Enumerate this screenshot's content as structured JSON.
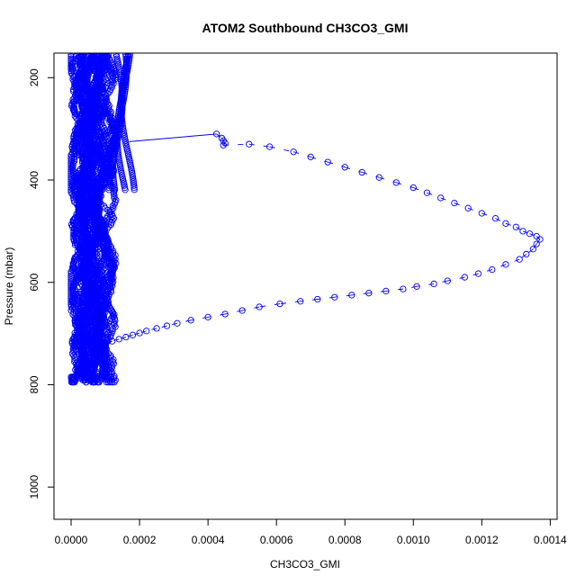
{
  "chart_data": {
    "type": "scatter",
    "title": "ATOM2 Southbound CH3CO3_GMI",
    "xlabel": "CH3CO3_GMI",
    "ylabel": "Pressure (mbar)",
    "xlim": [
      -5e-05,
      0.00142
    ],
    "ylim": [
      1063,
      152
    ],
    "y_reversed": true,
    "xticks": [
      "0.0000",
      "0.0002",
      "0.0004",
      "0.0006",
      "0.0008",
      "0.0010",
      "0.0012",
      "0.0014"
    ],
    "yticks": [
      "200",
      "400",
      "600",
      "800",
      "1000"
    ],
    "grid": false,
    "legend": "none",
    "color": "#0000ff",
    "marker": "open-circle",
    "dense_band": {
      "x": [
        0.0,
        0.00012
      ],
      "y": [
        155,
        800
      ]
    },
    "series": [
      {
        "x": [
          0.000425,
          0.00044,
          0.000445,
          0.00045,
          0.000445,
          0.00052,
          0.00058,
          0.00065,
          0.0007,
          0.00075,
          0.0008,
          0.00085,
          0.0009,
          0.00095,
          0.001,
          0.00104,
          0.00108,
          0.00112,
          0.00116,
          0.0012,
          0.00124,
          0.00127,
          0.0013,
          0.00132,
          0.00134,
          0.00136,
          0.00137,
          0.00136,
          0.00135,
          0.00133,
          0.00131,
          0.00127,
          0.00123,
          0.00119,
          0.00115,
          0.0011,
          0.00106,
          0.00101,
          0.00097,
          0.00092,
          0.00087,
          0.00082,
          0.00077,
          0.00072,
          0.00067,
          0.00061,
          0.00055,
          0.0005,
          0.00045,
          0.0004,
          0.00035,
          0.00031,
          0.00028,
          0.00025,
          0.00022,
          0.0002,
          0.00018,
          0.00016,
          0.00014,
          0.00012,
          0.0001
        ],
        "y": [
          310,
          318,
          323,
          328,
          332,
          330,
          335,
          345,
          355,
          365,
          375,
          385,
          395,
          405,
          415,
          425,
          435,
          445,
          455,
          465,
          475,
          485,
          492,
          500,
          505,
          510,
          516,
          525,
          535,
          545,
          555,
          565,
          575,
          583,
          590,
          597,
          603,
          608,
          613,
          617,
          621,
          625,
          629,
          633,
          637,
          642,
          648,
          655,
          662,
          668,
          674,
          680,
          685,
          690,
          695,
          699,
          703,
          707,
          711,
          715,
          720
        ]
      }
    ],
    "connector": {
      "x": [
        0.000425,
        0.00017
      ],
      "y": [
        310,
        325
      ]
    }
  }
}
